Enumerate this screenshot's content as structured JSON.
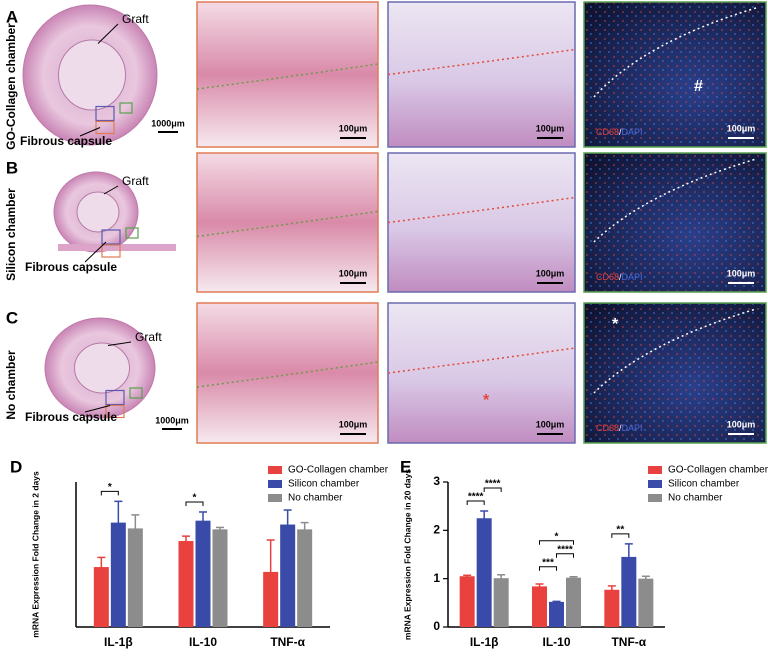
{
  "figure": {
    "rows": [
      {
        "letter": "A",
        "label": "GO-Collagen chamber",
        "graft": "Graft",
        "capsule": "Fibrous capsule",
        "overview_scale": "1000μm",
        "scales": [
          "100μm",
          "100μm",
          "100μm"
        ],
        "stain": [
          "CD68",
          "/",
          "DAPI"
        ],
        "fluor_marker": "#"
      },
      {
        "letter": "B",
        "label": "Silicon chamber",
        "graft": "Graft",
        "capsule": "Fibrous capsule",
        "scales": [
          "100μm",
          "100μm",
          "100μm"
        ],
        "stain": [
          "CD68",
          "/",
          "DAPI"
        ]
      },
      {
        "letter": "C",
        "label": "No chamber",
        "graft": "Graft",
        "capsule": "Fibrous capsule",
        "overview_scale": "1000μm",
        "scales": [
          "100μm",
          "100μm",
          "100μm"
        ],
        "stain": [
          "CD68",
          "/",
          "DAPI"
        ],
        "he_marker": "*",
        "fluor_marker": "*"
      }
    ]
  },
  "chart_data": [
    {
      "type": "bar",
      "letter": "D",
      "y_label": "mRNA Expression Fold Change in 2 days",
      "categories": [
        "IL-1β",
        "IL-10",
        "TNF-α"
      ],
      "ylim": [
        0,
        1.5
      ],
      "legend": "top-right",
      "series": [
        {
          "name": "GO-Collagen chamber",
          "color": "#e8413e",
          "values": [
            0.62,
            0.89,
            0.57
          ],
          "errors": [
            0.1,
            0.05,
            0.33
          ]
        },
        {
          "name": "Silicon chamber",
          "color": "#3a4aa8",
          "values": [
            1.08,
            1.1,
            1.06
          ],
          "errors": [
            0.22,
            0.09,
            0.15
          ]
        },
        {
          "name": "No chamber",
          "color": "#8c8c8c",
          "values": [
            1.02,
            1.01,
            1.01
          ],
          "errors": [
            0.14,
            0.02,
            0.07
          ]
        }
      ],
      "significance": [
        {
          "category": 0,
          "from": 0,
          "to": 1,
          "label": "*"
        },
        {
          "category": 1,
          "from": 0,
          "to": 1,
          "label": "*"
        }
      ]
    },
    {
      "type": "bar",
      "letter": "E",
      "y_label": "mRNA Expression Fold Change in 20 days",
      "categories": [
        "IL-1β",
        "IL-10",
        "TNF-α"
      ],
      "ylim": [
        0,
        3
      ],
      "yticks": [
        0,
        1,
        2,
        3
      ],
      "legend": "top-right",
      "series": [
        {
          "name": "GO-Collagen chamber",
          "color": "#e8413e",
          "values": [
            1.05,
            0.84,
            0.77
          ],
          "errors": [
            0.02,
            0.05,
            0.08
          ]
        },
        {
          "name": "Silicon chamber",
          "color": "#3a4aa8",
          "values": [
            2.25,
            0.52,
            1.45
          ],
          "errors": [
            0.15,
            0.01,
            0.27
          ]
        },
        {
          "name": "No chamber",
          "color": "#8c8c8c",
          "values": [
            1.01,
            1.02,
            1.0
          ],
          "errors": [
            0.07,
            0.02,
            0.05
          ]
        }
      ],
      "significance": [
        {
          "category": 0,
          "from": 0,
          "to": 1,
          "label": "****"
        },
        {
          "category": 0,
          "from": 1,
          "to": 2,
          "label": "****"
        },
        {
          "category": 1,
          "from": 0,
          "to": 1,
          "label": "***"
        },
        {
          "category": 1,
          "from": 1,
          "to": 2,
          "label": "****"
        },
        {
          "category": 1,
          "from": 0,
          "to": 2,
          "label": "*"
        },
        {
          "category": 2,
          "from": 0,
          "to": 1,
          "label": "**"
        }
      ]
    }
  ]
}
